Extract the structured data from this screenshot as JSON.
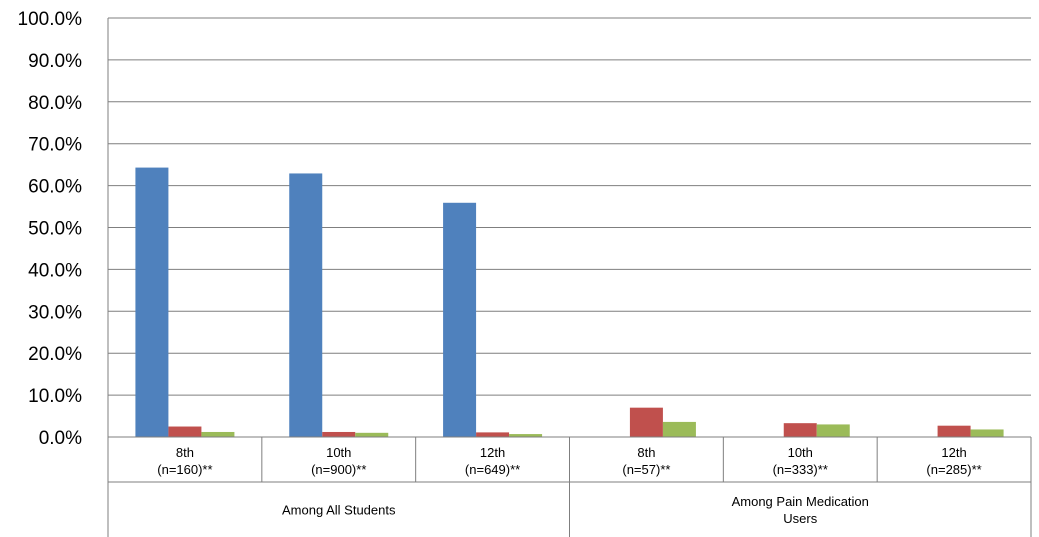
{
  "chart_data": {
    "type": "bar",
    "groups": [
      {
        "label_lines": [
          "Among All Students"
        ],
        "category_count": 3
      },
      {
        "label_lines": [
          "Among Pain Medication",
          "Users"
        ],
        "category_count": 3
      }
    ],
    "categories": [
      {
        "grade": "8th",
        "n": "(n=160)**"
      },
      {
        "grade": "10th",
        "n": "(n=900)**"
      },
      {
        "grade": "12th",
        "n": "(n=649)**"
      },
      {
        "grade": "8th",
        "n": "(n=57)**"
      },
      {
        "grade": "10th",
        "n": "(n=333)**"
      },
      {
        "grade": "12th",
        "n": "(n=285)**"
      }
    ],
    "series": [
      {
        "color": "#4f81bd",
        "values": [
          64.3,
          62.9,
          55.9,
          0,
          0,
          0
        ]
      },
      {
        "color": "#c0504d",
        "values": [
          2.5,
          1.2,
          1.1,
          7.0,
          3.3,
          2.7
        ]
      },
      {
        "color": "#9bbb59",
        "values": [
          1.2,
          1.0,
          0.7,
          3.6,
          3.0,
          1.8
        ]
      }
    ],
    "ylim": [
      0,
      100
    ],
    "ytick_labels": [
      "0.0%",
      "10.0%",
      "20.0%",
      "30.0%",
      "40.0%",
      "50.0%",
      "60.0%",
      "70.0%",
      "80.0%",
      "90.0%",
      "100.0%"
    ],
    "grid": true
  }
}
